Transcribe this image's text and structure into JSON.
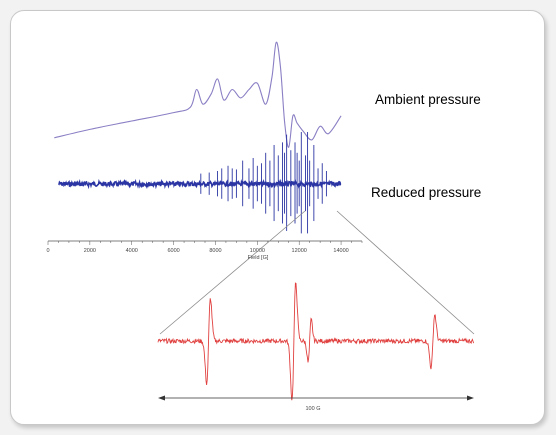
{
  "colors": {
    "ambient": "#8a7fc4",
    "reduced": "#2b35a3",
    "zoom": "#e0403f",
    "axis": "#555555",
    "connector": "#8a8a8a"
  },
  "chart_data": [
    {
      "type": "line",
      "name": "main-spectra",
      "xlabel": "Field [G]",
      "xlim": [
        0,
        15000
      ],
      "grid": false,
      "x_ticks": [
        0,
        2000,
        4000,
        6000,
        8000,
        10000,
        12000,
        14000
      ],
      "x_tick_labels": [
        "0",
        "2000",
        "4000",
        "6000",
        "8000",
        "10000",
        "12000",
        "14000"
      ],
      "series": [
        {
          "name": "Ambient pressure",
          "x": [
            300,
            2000,
            4000,
            6000,
            6800,
            7100,
            7400,
            7800,
            8100,
            8400,
            8800,
            9200,
            9600,
            10000,
            10400,
            10700,
            10900,
            11100,
            11300,
            11500,
            11700,
            11900,
            12200,
            12600,
            13000,
            13400,
            14000
          ],
          "y": [
            0.04,
            0.12,
            0.2,
            0.28,
            0.33,
            0.5,
            0.36,
            0.46,
            0.6,
            0.4,
            0.5,
            0.42,
            0.5,
            0.56,
            0.36,
            0.62,
            0.95,
            0.72,
            0.2,
            -0.05,
            0.25,
            0.18,
            0.1,
            0.02,
            0.15,
            0.08,
            0.25
          ]
        },
        {
          "name": "Reduced pressure",
          "x_range": [
            500,
            14000
          ],
          "noise_floor": 0.04,
          "lines_x": [
            7300,
            7700,
            8100,
            8300,
            8600,
            8800,
            9000,
            9300,
            9600,
            9800,
            10000,
            10200,
            10400,
            10600,
            10800,
            11000,
            11200,
            11300,
            11400,
            11600,
            11800,
            11900,
            12000,
            12100,
            12300,
            12400,
            12500,
            12700,
            12900,
            13100,
            13300
          ],
          "lines_amp": [
            0.2,
            0.22,
            0.25,
            0.3,
            0.35,
            0.3,
            0.28,
            0.45,
            0.3,
            0.5,
            0.35,
            0.4,
            0.6,
            0.45,
            0.75,
            0.55,
            0.8,
            0.6,
            0.95,
            0.65,
            0.8,
            0.6,
            0.45,
            1.0,
            0.55,
            1.0,
            0.45,
            0.75,
            0.3,
            0.4,
            0.25
          ]
        }
      ]
    },
    {
      "type": "line",
      "name": "zoomed-segment",
      "scale_bar_label": "100 G",
      "series": [
        {
          "name": "zoom",
          "noise": 0.04,
          "derivatives": [
            {
              "center": 0.16,
              "amp": 0.8,
              "width": 0.006
            },
            {
              "center": 0.43,
              "amp": 1.1,
              "width": 0.006
            },
            {
              "center": 0.48,
              "amp": 0.4,
              "width": 0.005
            },
            {
              "center": 0.87,
              "amp": 0.5,
              "width": 0.006
            }
          ]
        }
      ]
    }
  ],
  "labels": {
    "ambient": "Ambient pressure",
    "reduced": "Reduced pressure",
    "axis_title": "Field [G]",
    "scale": "100 G"
  }
}
